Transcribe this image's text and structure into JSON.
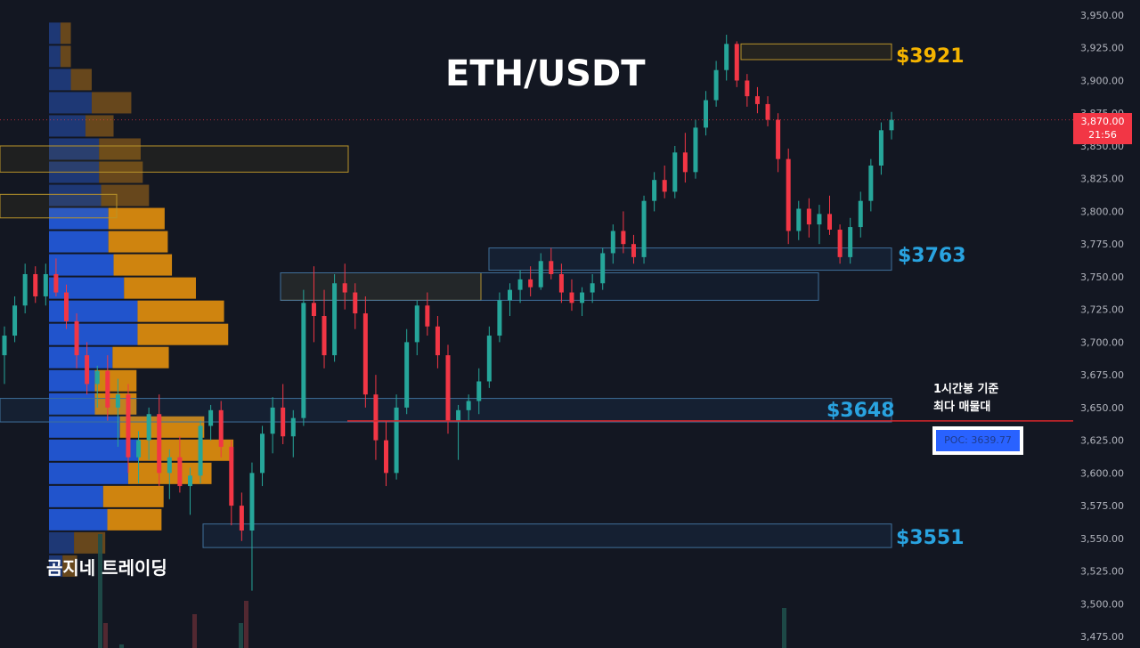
{
  "title": "ETH/USDT",
  "watermark": "곰지네 트레이딩",
  "annotations": {
    "zones": [
      {
        "label": "$3921",
        "color": "#f5b400"
      },
      {
        "label": "$3763",
        "color": "#29a3e0"
      },
      {
        "label": "$3648",
        "color": "#29a3e0"
      },
      {
        "label": "$3551",
        "color": "#29a3e0"
      }
    ],
    "poc_note": [
      "1시간봉 기준",
      "최다 매물대"
    ],
    "poc_label": "POC: 3639.77"
  },
  "last_price": {
    "value": "3,870.00",
    "countdown": "21:56",
    "color": "#f23645"
  },
  "colors": {
    "up": "#26a69a",
    "down": "#f23645",
    "background": "#131722"
  },
  "chart_data": {
    "type": "candlestick",
    "title": "ETH/USDT",
    "xlabel": "",
    "ylabel": "",
    "ylim": [
      3465,
      3960
    ],
    "y_ticks": [
      "3,950.00",
      "3,925.00",
      "3,900.00",
      "3,875.00",
      "3,850.00",
      "3,825.00",
      "3,800.00",
      "3,775.00",
      "3,750.00",
      "3,725.00",
      "3,700.00",
      "3,675.00",
      "3,650.00",
      "3,625.00",
      "3,600.00",
      "3,575.00",
      "3,550.00",
      "3,525.00",
      "3,500.00",
      "3,475.00"
    ],
    "y_tick_values": [
      3950,
      3925,
      3900,
      3875,
      3850,
      3825,
      3800,
      3775,
      3750,
      3725,
      3700,
      3675,
      3650,
      3625,
      3600,
      3575,
      3550,
      3525,
      3500,
      3475
    ],
    "grid": false,
    "legend": "none",
    "levels": [
      {
        "name": "$3921",
        "value": 3921,
        "band": [
          3916,
          3928
        ],
        "type": "resistance"
      },
      {
        "name": "$3763",
        "value": 3763,
        "band": [
          3755,
          3772
        ],
        "type": "support"
      },
      {
        "name": "$3648",
        "value": 3648,
        "band": [
          3639,
          3657
        ],
        "type": "support"
      },
      {
        "name": "$3551",
        "value": 3551,
        "band": [
          3543,
          3561
        ],
        "type": "support"
      }
    ],
    "poc": 3639.77,
    "last_close": 3870,
    "volume_profile": {
      "price_low": 3520,
      "price_high": 3945,
      "rows": [
        {
          "up": 11,
          "down": 10
        },
        {
          "up": 11,
          "down": 10
        },
        {
          "up": 21,
          "down": 20
        },
        {
          "up": 41,
          "down": 38
        },
        {
          "up": 35,
          "down": 27
        },
        {
          "up": 48,
          "down": 40
        },
        {
          "up": 48,
          "down": 42
        },
        {
          "up": 50,
          "down": 46
        },
        {
          "up": 57,
          "down": 54
        },
        {
          "up": 57,
          "down": 57
        },
        {
          "up": 62,
          "down": 56
        },
        {
          "up": 72,
          "down": 69
        },
        {
          "up": 85,
          "down": 83
        },
        {
          "up": 85,
          "down": 87
        },
        {
          "up": 61,
          "down": 54
        },
        {
          "up": 44,
          "down": 40
        },
        {
          "up": 44,
          "down": 40
        },
        {
          "up": 68,
          "down": 81
        },
        {
          "up": 86,
          "down": 91
        },
        {
          "up": 76,
          "down": 80
        },
        {
          "up": 52,
          "down": 58
        },
        {
          "up": 56,
          "down": 52
        },
        {
          "up": 24,
          "down": 30
        },
        {
          "up": 13,
          "down": 14
        }
      ]
    },
    "ohlc": [
      [
        3690,
        3712,
        3668,
        3705
      ],
      [
        3705,
        3735,
        3700,
        3728
      ],
      [
        3728,
        3760,
        3722,
        3752
      ],
      [
        3752,
        3758,
        3730,
        3735
      ],
      [
        3735,
        3760,
        3728,
        3752
      ],
      [
        3752,
        3764,
        3735,
        3738
      ],
      [
        3738,
        3744,
        3710,
        3716
      ],
      [
        3716,
        3722,
        3680,
        3690
      ],
      [
        3690,
        3700,
        3660,
        3668
      ],
      [
        3668,
        3682,
        3650,
        3678
      ],
      [
        3678,
        3690,
        3640,
        3650
      ],
      [
        3650,
        3672,
        3620,
        3660
      ],
      [
        3660,
        3668,
        3600,
        3612
      ],
      [
        3612,
        3632,
        3592,
        3625
      ],
      [
        3625,
        3650,
        3610,
        3645
      ],
      [
        3645,
        3660,
        3590,
        3600
      ],
      [
        3600,
        3618,
        3580,
        3612
      ],
      [
        3612,
        3628,
        3585,
        3590
      ],
      [
        3590,
        3604,
        3568,
        3598
      ],
      [
        3598,
        3640,
        3592,
        3636
      ],
      [
        3636,
        3652,
        3625,
        3648
      ],
      [
        3648,
        3655,
        3612,
        3620
      ],
      [
        3620,
        3625,
        3560,
        3575
      ],
      [
        3575,
        3585,
        3548,
        3556
      ],
      [
        3556,
        3608,
        3510,
        3600
      ],
      [
        3600,
        3636,
        3590,
        3630
      ],
      [
        3630,
        3658,
        3615,
        3650
      ],
      [
        3650,
        3668,
        3622,
        3628
      ],
      [
        3628,
        3648,
        3612,
        3642
      ],
      [
        3642,
        3740,
        3636,
        3730
      ],
      [
        3730,
        3758,
        3700,
        3720
      ],
      [
        3720,
        3740,
        3680,
        3690
      ],
      [
        3690,
        3752,
        3685,
        3745
      ],
      [
        3745,
        3760,
        3725,
        3738
      ],
      [
        3738,
        3745,
        3710,
        3722
      ],
      [
        3722,
        3735,
        3650,
        3660
      ],
      [
        3660,
        3675,
        3610,
        3625
      ],
      [
        3625,
        3640,
        3590,
        3600
      ],
      [
        3600,
        3660,
        3595,
        3650
      ],
      [
        3650,
        3710,
        3645,
        3700
      ],
      [
        3700,
        3732,
        3690,
        3728
      ],
      [
        3728,
        3738,
        3705,
        3712
      ],
      [
        3712,
        3720,
        3680,
        3690
      ],
      [
        3690,
        3698,
        3630,
        3640
      ],
      [
        3640,
        3652,
        3610,
        3648
      ],
      [
        3648,
        3660,
        3640,
        3655
      ],
      [
        3655,
        3680,
        3645,
        3670
      ],
      [
        3670,
        3712,
        3665,
        3705
      ],
      [
        3705,
        3738,
        3700,
        3732
      ],
      [
        3732,
        3745,
        3720,
        3740
      ],
      [
        3740,
        3755,
        3730,
        3748
      ],
      [
        3748,
        3758,
        3735,
        3742
      ],
      [
        3742,
        3768,
        3740,
        3762
      ],
      [
        3762,
        3772,
        3748,
        3752
      ],
      [
        3752,
        3760,
        3730,
        3738
      ],
      [
        3738,
        3748,
        3724,
        3730
      ],
      [
        3730,
        3742,
        3720,
        3738
      ],
      [
        3738,
        3752,
        3730,
        3745
      ],
      [
        3745,
        3772,
        3740,
        3768
      ],
      [
        3768,
        3790,
        3760,
        3785
      ],
      [
        3785,
        3800,
        3768,
        3775
      ],
      [
        3775,
        3782,
        3760,
        3765
      ],
      [
        3765,
        3812,
        3760,
        3808
      ],
      [
        3808,
        3830,
        3800,
        3824
      ],
      [
        3824,
        3835,
        3810,
        3815
      ],
      [
        3815,
        3850,
        3810,
        3845
      ],
      [
        3845,
        3860,
        3822,
        3830
      ],
      [
        3830,
        3870,
        3825,
        3864
      ],
      [
        3864,
        3892,
        3858,
        3885
      ],
      [
        3885,
        3915,
        3880,
        3908
      ],
      [
        3908,
        3935,
        3900,
        3928
      ],
      [
        3928,
        3930,
        3895,
        3900
      ],
      [
        3900,
        3905,
        3880,
        3888
      ],
      [
        3888,
        3895,
        3875,
        3882
      ],
      [
        3882,
        3888,
        3865,
        3870
      ],
      [
        3870,
        3875,
        3830,
        3840
      ],
      [
        3840,
        3848,
        3775,
        3785
      ],
      [
        3785,
        3808,
        3778,
        3802
      ],
      [
        3802,
        3810,
        3780,
        3790
      ],
      [
        3790,
        3805,
        3775,
        3798
      ],
      [
        3798,
        3812,
        3782,
        3786
      ],
      [
        3786,
        3790,
        3760,
        3765
      ],
      [
        3765,
        3795,
        3760,
        3788
      ],
      [
        3788,
        3815,
        3780,
        3808
      ],
      [
        3808,
        3840,
        3800,
        3835
      ],
      [
        3835,
        3868,
        3828,
        3862
      ],
      [
        3862,
        3876,
        3855,
        3870
      ]
    ]
  }
}
